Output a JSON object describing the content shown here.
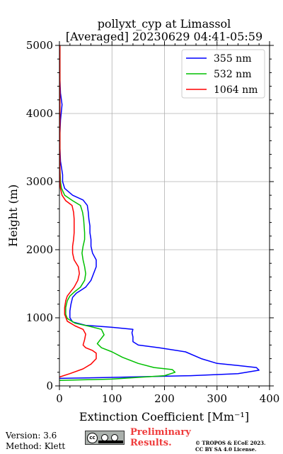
{
  "chart_data": {
    "type": "line",
    "title_lines": [
      "pollyxt_cyp at Limassol",
      "[Averaged] 20230629 04:41-05:59"
    ],
    "xlabel": "Extinction Coefficient [Mm⁻¹]",
    "ylabel": "Height (m)",
    "xlim": [
      0,
      400
    ],
    "ylim": [
      0,
      5000
    ],
    "xticks": [
      0,
      100,
      200,
      300,
      400
    ],
    "xtick_labels": [
      "0",
      "100",
      "200",
      "300",
      "400"
    ],
    "yticks": [
      0,
      1000,
      2000,
      3000,
      4000,
      5000
    ],
    "ytick_labels": [
      "0",
      "1000",
      "2000",
      "3000",
      "4000",
      "5000"
    ],
    "grid": true,
    "legend_position": "top-right",
    "colors": {
      "355 nm": "#0000ff",
      "532 nm": "#00c000",
      "1064 nm": "#ff0000"
    },
    "series": [
      {
        "name": "355 nm",
        "points": [
          [
            0,
            110
          ],
          [
            100,
            125
          ],
          [
            250,
            150
          ],
          [
            340,
            180
          ],
          [
            380,
            230
          ],
          [
            375,
            270
          ],
          [
            340,
            300
          ],
          [
            300,
            330
          ],
          [
            270,
            400
          ],
          [
            240,
            500
          ],
          [
            190,
            560
          ],
          [
            150,
            600
          ],
          [
            140,
            650
          ],
          [
            140,
            720
          ],
          [
            138,
            780
          ],
          [
            140,
            830
          ],
          [
            100,
            860
          ],
          [
            50,
            890
          ],
          [
            25,
            940
          ],
          [
            20,
            1000
          ],
          [
            20,
            1100
          ],
          [
            22,
            1200
          ],
          [
            25,
            1300
          ],
          [
            32,
            1360
          ],
          [
            40,
            1400
          ],
          [
            50,
            1450
          ],
          [
            60,
            1550
          ],
          [
            65,
            1650
          ],
          [
            70,
            1750
          ],
          [
            70,
            1850
          ],
          [
            63,
            1950
          ],
          [
            60,
            2050
          ],
          [
            60,
            2150
          ],
          [
            58,
            2250
          ],
          [
            58,
            2350
          ],
          [
            56,
            2450
          ],
          [
            55,
            2550
          ],
          [
            53,
            2650
          ],
          [
            45,
            2730
          ],
          [
            25,
            2800
          ],
          [
            10,
            2900
          ],
          [
            6,
            3000
          ],
          [
            6,
            3100
          ],
          [
            4,
            3200
          ],
          [
            2,
            3300
          ],
          [
            1,
            3500
          ],
          [
            1,
            3700
          ],
          [
            2,
            3900
          ],
          [
            5,
            4130
          ],
          [
            2,
            4300
          ],
          [
            1,
            4500
          ],
          [
            1,
            4800
          ],
          [
            1,
            5000
          ]
        ]
      },
      {
        "name": "532 nm",
        "points": [
          [
            0,
            80
          ],
          [
            100,
            100
          ],
          [
            200,
            150
          ],
          [
            220,
            200
          ],
          [
            215,
            240
          ],
          [
            180,
            270
          ],
          [
            150,
            330
          ],
          [
            120,
            420
          ],
          [
            100,
            500
          ],
          [
            80,
            560
          ],
          [
            72,
            620
          ],
          [
            78,
            680
          ],
          [
            85,
            750
          ],
          [
            80,
            830
          ],
          [
            60,
            870
          ],
          [
            30,
            920
          ],
          [
            15,
            990
          ],
          [
            12,
            1050
          ],
          [
            12,
            1150
          ],
          [
            15,
            1250
          ],
          [
            20,
            1320
          ],
          [
            30,
            1390
          ],
          [
            40,
            1450
          ],
          [
            48,
            1550
          ],
          [
            50,
            1650
          ],
          [
            48,
            1750
          ],
          [
            45,
            1850
          ],
          [
            43,
            1950
          ],
          [
            45,
            2050
          ],
          [
            48,
            2150
          ],
          [
            48,
            2250
          ],
          [
            47,
            2350
          ],
          [
            46,
            2450
          ],
          [
            44,
            2550
          ],
          [
            40,
            2650
          ],
          [
            25,
            2720
          ],
          [
            10,
            2800
          ],
          [
            4,
            2900
          ],
          [
            2,
            3000
          ],
          [
            1,
            3200
          ],
          [
            1,
            3500
          ],
          [
            1,
            4000
          ],
          [
            1,
            4500
          ],
          [
            1,
            5000
          ]
        ]
      },
      {
        "name": "1064 nm",
        "points": [
          [
            0,
            130
          ],
          [
            20,
            180
          ],
          [
            45,
            250
          ],
          [
            60,
            320
          ],
          [
            70,
            400
          ],
          [
            70,
            480
          ],
          [
            63,
            520
          ],
          [
            50,
            560
          ],
          [
            45,
            600
          ],
          [
            48,
            680
          ],
          [
            50,
            760
          ],
          [
            45,
            830
          ],
          [
            30,
            880
          ],
          [
            15,
            950
          ],
          [
            10,
            1050
          ],
          [
            10,
            1150
          ],
          [
            12,
            1250
          ],
          [
            15,
            1320
          ],
          [
            22,
            1390
          ],
          [
            28,
            1450
          ],
          [
            35,
            1550
          ],
          [
            38,
            1650
          ],
          [
            36,
            1750
          ],
          [
            28,
            1850
          ],
          [
            25,
            1950
          ],
          [
            25,
            2050
          ],
          [
            27,
            2150
          ],
          [
            28,
            2250
          ],
          [
            28,
            2350
          ],
          [
            28,
            2450
          ],
          [
            27,
            2550
          ],
          [
            24,
            2650
          ],
          [
            12,
            2720
          ],
          [
            5,
            2800
          ],
          [
            2,
            2900
          ],
          [
            1,
            3000
          ],
          [
            1,
            3200
          ],
          [
            1,
            3500
          ],
          [
            1,
            4000
          ],
          [
            1,
            4500
          ],
          [
            1,
            5000
          ]
        ]
      }
    ]
  },
  "footer": {
    "version": "Version: 3.6",
    "method": "Method: Klett",
    "cc_badge_label": "cc",
    "preliminary_line1": "Preliminary",
    "preliminary_line2": "Results.",
    "copyright_line1": "© TROPOS & ECoE 2023.",
    "copyright_line2": "CC BY SA 4.0 License."
  }
}
